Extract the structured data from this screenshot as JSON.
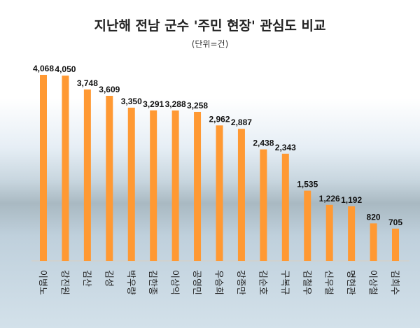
{
  "chart_data": {
    "type": "bar",
    "title": "지난해 전남 군수 '주민 현장' 관심도 비교",
    "subtitle": "(단위=건)",
    "categories": [
      "이병노",
      "강진원",
      "김산",
      "김성",
      "박우량",
      "김한종",
      "이상익",
      "공영민",
      "우승희",
      "강종만",
      "김순호",
      "구복규",
      "김철우",
      "신우철",
      "명현관",
      "이상철",
      "김희수"
    ],
    "values": [
      4068,
      4050,
      3748,
      3609,
      3350,
      3291,
      3288,
      3258,
      2962,
      2887,
      2438,
      2343,
      1535,
      1226,
      1192,
      820,
      705
    ],
    "data_labels": [
      "4,068",
      "4,050",
      "3,748",
      "3,609",
      "3,350",
      "3,291",
      "3,288",
      "3,258",
      "2,962",
      "2,887",
      "2,438",
      "2,343",
      "1,535",
      "1,226",
      "1,192",
      "820",
      "705"
    ],
    "ylim": [
      0,
      4500
    ],
    "grid": false,
    "bar_color": "#FF9933"
  }
}
